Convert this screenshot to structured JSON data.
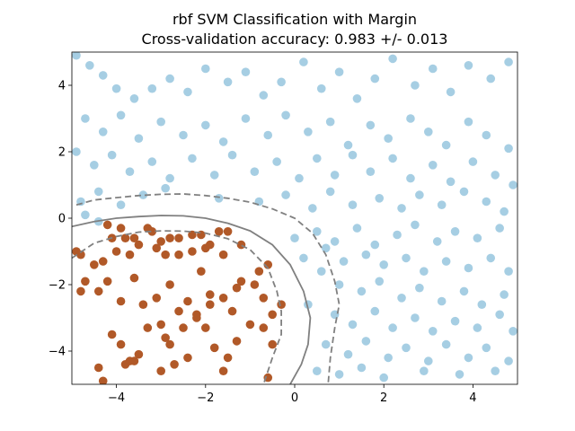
{
  "chart_data": {
    "type": "scatter",
    "title": "rbf SVM Classification with Margin",
    "subtitle": "Cross-validation accuracy: 0.983 +/- 0.013",
    "xlabel": "",
    "ylabel": "",
    "xlim": [
      -5,
      5
    ],
    "ylim": [
      -5,
      5
    ],
    "grid": false,
    "x_ticks": [
      -4,
      -2,
      0,
      2,
      4
    ],
    "x_tick_labels": [
      "−4",
      "−2",
      "0",
      "2",
      "4"
    ],
    "y_ticks": [
      -4,
      -2,
      0,
      2,
      4
    ],
    "y_tick_labels": [
      "−4",
      "−2",
      "0",
      "2",
      "4"
    ],
    "colors": {
      "class_0": "#b15928",
      "class_1": "#a6cee3",
      "boundary": "#808080"
    },
    "series": [
      {
        "class": 0,
        "color": "#b15928",
        "points": [
          [
            -4.9,
            -1.0
          ],
          [
            -4.8,
            -1.1
          ],
          [
            -4.7,
            -1.9
          ],
          [
            -4.8,
            -2.2
          ],
          [
            -4.5,
            -1.4
          ],
          [
            -4.4,
            -2.2
          ],
          [
            -4.3,
            -1.3
          ],
          [
            -4.2,
            -0.2
          ],
          [
            -4.1,
            -0.6
          ],
          [
            -4.0,
            -1.0
          ],
          [
            -3.9,
            -0.3
          ],
          [
            -3.8,
            -0.6
          ],
          [
            -3.7,
            -1.1
          ],
          [
            -3.6,
            -0.6
          ],
          [
            -3.5,
            -0.8
          ],
          [
            -3.3,
            -0.3
          ],
          [
            -3.0,
            -0.7
          ],
          [
            -2.8,
            -0.6
          ],
          [
            -2.6,
            -0.6
          ],
          [
            -2.3,
            -0.5
          ],
          [
            -2.1,
            -0.5
          ],
          [
            -1.9,
            -0.8
          ],
          [
            -1.7,
            -0.4
          ],
          [
            -1.5,
            -0.4
          ],
          [
            -1.2,
            -0.8
          ],
          [
            -2.6,
            -1.1
          ],
          [
            -2.3,
            -1.0
          ],
          [
            -2.0,
            -0.9
          ],
          [
            -1.6,
            -1.1
          ],
          [
            -3.2,
            -0.4
          ],
          [
            -3.1,
            -0.9
          ],
          [
            -2.9,
            -1.1
          ],
          [
            -4.2,
            -1.9
          ],
          [
            -3.9,
            -2.5
          ],
          [
            -3.6,
            -1.8
          ],
          [
            -3.4,
            -2.6
          ],
          [
            -3.1,
            -2.4
          ],
          [
            -2.8,
            -2.0
          ],
          [
            -2.6,
            -2.8
          ],
          [
            -2.4,
            -2.5
          ],
          [
            -2.2,
            -2.9
          ],
          [
            -1.9,
            -2.6
          ],
          [
            -1.6,
            -2.4
          ],
          [
            -1.4,
            -2.8
          ],
          [
            -1.2,
            -1.9
          ],
          [
            -0.9,
            -2.0
          ],
          [
            -0.7,
            -2.4
          ],
          [
            -0.5,
            -2.9
          ],
          [
            -0.3,
            -2.6
          ],
          [
            -4.4,
            -4.5
          ],
          [
            -4.1,
            -3.5
          ],
          [
            -3.9,
            -3.8
          ],
          [
            -3.7,
            -4.3
          ],
          [
            -3.5,
            -4.1
          ],
          [
            -3.3,
            -3.3
          ],
          [
            -3.0,
            -3.2
          ],
          [
            -2.8,
            -3.8
          ],
          [
            -2.5,
            -3.3
          ],
          [
            -2.2,
            -3.0
          ],
          [
            -2.0,
            -3.3
          ],
          [
            -1.8,
            -3.9
          ],
          [
            -1.5,
            -4.2
          ],
          [
            -1.3,
            -3.7
          ],
          [
            -1.0,
            -3.2
          ],
          [
            -0.7,
            -3.3
          ],
          [
            -0.5,
            -3.8
          ],
          [
            -0.6,
            -4.8
          ],
          [
            -3.0,
            -4.6
          ],
          [
            -2.7,
            -4.4
          ],
          [
            -2.4,
            -4.2
          ],
          [
            -1.6,
            -4.6
          ],
          [
            -4.3,
            -4.9
          ],
          [
            -3.8,
            -4.4
          ],
          [
            -3.6,
            -4.3
          ],
          [
            -2.1,
            -1.6
          ],
          [
            -1.9,
            -2.3
          ],
          [
            -0.8,
            -1.6
          ],
          [
            -0.6,
            -1.4
          ],
          [
            -1.3,
            -2.1
          ],
          [
            -2.9,
            -3.6
          ]
        ]
      },
      {
        "class": 1,
        "color": "#a6cee3",
        "points": [
          [
            -4.9,
            4.9
          ],
          [
            -4.6,
            4.6
          ],
          [
            -4.3,
            4.3
          ],
          [
            -4.0,
            3.9
          ],
          [
            -3.6,
            3.6
          ],
          [
            -3.2,
            3.9
          ],
          [
            -2.8,
            4.2
          ],
          [
            -2.4,
            3.8
          ],
          [
            -2.0,
            4.5
          ],
          [
            -1.5,
            4.1
          ],
          [
            -1.1,
            4.4
          ],
          [
            -0.7,
            3.7
          ],
          [
            -0.3,
            4.1
          ],
          [
            0.2,
            4.7
          ],
          [
            0.6,
            3.9
          ],
          [
            1.0,
            4.4
          ],
          [
            1.4,
            3.6
          ],
          [
            1.8,
            4.2
          ],
          [
            2.2,
            4.8
          ],
          [
            2.7,
            4.0
          ],
          [
            3.1,
            4.5
          ],
          [
            3.5,
            3.8
          ],
          [
            3.9,
            4.6
          ],
          [
            4.4,
            4.2
          ],
          [
            4.8,
            4.7
          ],
          [
            -4.7,
            3.0
          ],
          [
            -4.3,
            2.6
          ],
          [
            -3.9,
            3.1
          ],
          [
            -3.5,
            2.4
          ],
          [
            -3.0,
            2.9
          ],
          [
            -2.5,
            2.5
          ],
          [
            -2.0,
            2.8
          ],
          [
            -1.6,
            2.3
          ],
          [
            -1.1,
            3.0
          ],
          [
            -0.6,
            2.5
          ],
          [
            -0.2,
            3.1
          ],
          [
            0.3,
            2.6
          ],
          [
            0.8,
            2.9
          ],
          [
            1.2,
            2.2
          ],
          [
            1.7,
            2.8
          ],
          [
            2.1,
            2.4
          ],
          [
            2.6,
            3.0
          ],
          [
            3.0,
            2.6
          ],
          [
            3.4,
            2.2
          ],
          [
            3.9,
            2.9
          ],
          [
            4.3,
            2.5
          ],
          [
            4.8,
            2.1
          ],
          [
            -4.9,
            2.0
          ],
          [
            -4.5,
            1.6
          ],
          [
            -4.1,
            1.9
          ],
          [
            -3.7,
            1.4
          ],
          [
            -3.2,
            1.7
          ],
          [
            -2.8,
            1.2
          ],
          [
            -2.3,
            1.8
          ],
          [
            -1.8,
            1.3
          ],
          [
            -1.4,
            1.9
          ],
          [
            -0.9,
            1.4
          ],
          [
            -0.4,
            1.7
          ],
          [
            0.1,
            1.2
          ],
          [
            0.5,
            1.8
          ],
          [
            0.9,
            1.3
          ],
          [
            1.3,
            1.9
          ],
          [
            1.7,
            1.4
          ],
          [
            2.2,
            1.8
          ],
          [
            2.6,
            1.2
          ],
          [
            3.1,
            1.6
          ],
          [
            3.5,
            1.1
          ],
          [
            4.0,
            1.7
          ],
          [
            4.5,
            1.3
          ],
          [
            4.9,
            1.0
          ],
          [
            -4.8,
            0.5
          ],
          [
            -4.4,
            0.8
          ],
          [
            -3.9,
            0.4
          ],
          [
            -3.4,
            0.7
          ],
          [
            -2.9,
            0.9
          ],
          [
            -1.7,
            0.6
          ],
          [
            -0.8,
            0.5
          ],
          [
            -0.2,
            0.7
          ],
          [
            0.4,
            0.3
          ],
          [
            0.8,
            0.8
          ],
          [
            1.3,
            0.4
          ],
          [
            1.9,
            0.6
          ],
          [
            2.4,
            0.3
          ],
          [
            2.8,
            0.7
          ],
          [
            3.3,
            0.4
          ],
          [
            3.8,
            0.8
          ],
          [
            4.3,
            0.5
          ],
          [
            4.7,
            0.2
          ],
          [
            -4.7,
            0.1
          ],
          [
            -4.4,
            -0.1
          ],
          [
            0.0,
            -0.6
          ],
          [
            0.5,
            -0.4
          ],
          [
            0.9,
            -0.7
          ],
          [
            1.4,
            -0.3
          ],
          [
            1.8,
            -0.8
          ],
          [
            2.3,
            -0.5
          ],
          [
            2.7,
            -0.2
          ],
          [
            3.2,
            -0.7
          ],
          [
            3.6,
            -0.4
          ],
          [
            4.1,
            -0.6
          ],
          [
            4.6,
            -0.3
          ],
          [
            1.1,
            -1.3
          ],
          [
            1.6,
            -1.1
          ],
          [
            2.0,
            -1.4
          ],
          [
            2.5,
            -1.2
          ],
          [
            2.9,
            -1.6
          ],
          [
            3.4,
            -1.3
          ],
          [
            3.9,
            -1.5
          ],
          [
            4.4,
            -1.2
          ],
          [
            4.8,
            -1.6
          ],
          [
            1.0,
            -2.0
          ],
          [
            1.5,
            -2.2
          ],
          [
            1.9,
            -1.9
          ],
          [
            2.4,
            -2.4
          ],
          [
            2.8,
            -2.1
          ],
          [
            3.3,
            -2.5
          ],
          [
            3.8,
            -2.2
          ],
          [
            4.2,
            -2.6
          ],
          [
            4.7,
            -2.3
          ],
          [
            0.9,
            -2.9
          ],
          [
            1.3,
            -3.2
          ],
          [
            1.8,
            -2.8
          ],
          [
            2.2,
            -3.3
          ],
          [
            2.7,
            -3.0
          ],
          [
            3.1,
            -3.4
          ],
          [
            3.6,
            -3.1
          ],
          [
            4.1,
            -3.3
          ],
          [
            4.6,
            -2.9
          ],
          [
            4.9,
            -3.4
          ],
          [
            0.7,
            -3.8
          ],
          [
            1.2,
            -4.1
          ],
          [
            1.6,
            -3.7
          ],
          [
            2.1,
            -4.2
          ],
          [
            2.5,
            -3.9
          ],
          [
            3.0,
            -4.3
          ],
          [
            3.4,
            -3.8
          ],
          [
            3.9,
            -4.2
          ],
          [
            4.3,
            -3.9
          ],
          [
            4.8,
            -4.3
          ],
          [
            0.5,
            -4.6
          ],
          [
            1.0,
            -4.7
          ],
          [
            1.5,
            -4.5
          ],
          [
            2.0,
            -4.8
          ],
          [
            2.9,
            -4.6
          ],
          [
            3.7,
            -4.7
          ],
          [
            4.5,
            -4.6
          ],
          [
            0.3,
            -2.6
          ],
          [
            0.6,
            -1.6
          ],
          [
            0.2,
            -1.2
          ],
          [
            0.7,
            -0.9
          ]
        ]
      }
    ],
    "decision_function_levels": [
      {
        "level": -1,
        "linestyle": "dashed"
      },
      {
        "level": 0,
        "linestyle": "solid"
      },
      {
        "level": 1,
        "linestyle": "dashed"
      }
    ],
    "contours": [
      {
        "level": 1,
        "linestyle": "dashed",
        "points": [
          [
            -5.0,
            -1.2
          ],
          [
            -4.5,
            -0.75
          ],
          [
            -4.0,
            -0.55
          ],
          [
            -3.5,
            -0.42
          ],
          [
            -3.0,
            -0.38
          ],
          [
            -2.5,
            -0.39
          ],
          [
            -2.0,
            -0.45
          ],
          [
            -1.5,
            -0.62
          ],
          [
            -1.0,
            -0.95
          ],
          [
            -0.6,
            -1.5
          ],
          [
            -0.4,
            -2.2
          ],
          [
            -0.3,
            -2.8
          ],
          [
            -0.3,
            -3.5
          ],
          [
            -0.5,
            -4.2
          ],
          [
            -0.7,
            -5.0
          ]
        ]
      },
      {
        "level": 0,
        "linestyle": "solid",
        "points": [
          [
            -5.0,
            -0.25
          ],
          [
            -4.5,
            -0.1
          ],
          [
            -4.0,
            0.0
          ],
          [
            -3.5,
            0.05
          ],
          [
            -3.0,
            0.08
          ],
          [
            -2.5,
            0.07
          ],
          [
            -2.0,
            0.0
          ],
          [
            -1.5,
            -0.15
          ],
          [
            -1.0,
            -0.38
          ],
          [
            -0.5,
            -0.8
          ],
          [
            -0.1,
            -1.4
          ],
          [
            0.2,
            -2.2
          ],
          [
            0.35,
            -3.0
          ],
          [
            0.3,
            -3.8
          ],
          [
            0.15,
            -4.4
          ],
          [
            -0.1,
            -5.0
          ]
        ]
      },
      {
        "level": -1,
        "linestyle": "dashed",
        "points": [
          [
            -4.9,
            0.4
          ],
          [
            -4.5,
            0.55
          ],
          [
            -4.0,
            0.62
          ],
          [
            -3.5,
            0.68
          ],
          [
            -3.0,
            0.72
          ],
          [
            -2.5,
            0.73
          ],
          [
            -2.0,
            0.68
          ],
          [
            -1.5,
            0.6
          ],
          [
            -1.0,
            0.48
          ],
          [
            -0.5,
            0.28
          ],
          [
            0.0,
            0.0
          ],
          [
            0.4,
            -0.45
          ],
          [
            0.7,
            -1.1
          ],
          [
            0.9,
            -1.9
          ],
          [
            1.0,
            -2.6
          ],
          [
            0.9,
            -3.3
          ],
          [
            0.8,
            -4.2
          ],
          [
            0.75,
            -5.0
          ]
        ]
      }
    ]
  }
}
